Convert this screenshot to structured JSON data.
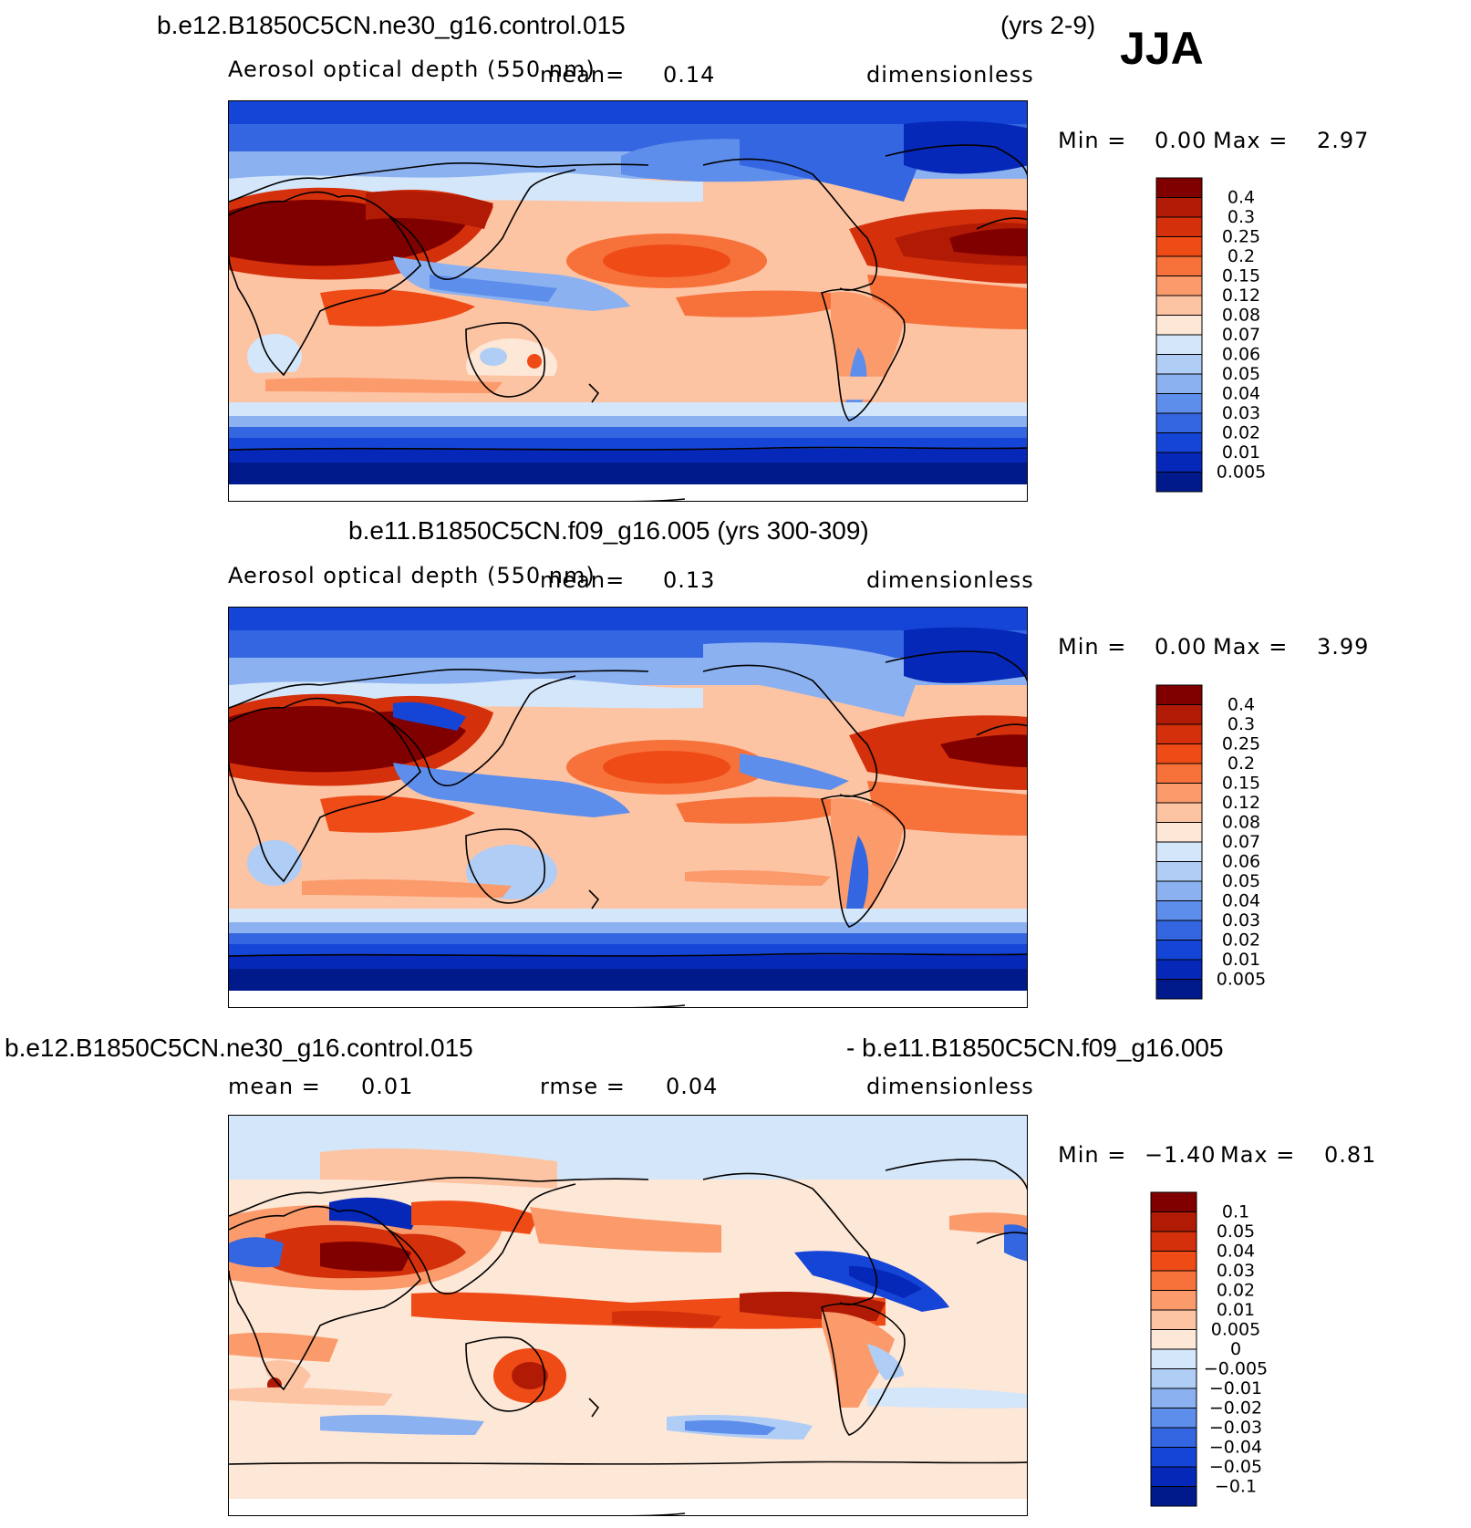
{
  "season": "JJA",
  "panels": [
    {
      "id": "case1",
      "case_name": "b.e12.B1850C5CN.ne30_g16.control.015",
      "years": "(yrs 2-9)",
      "variable": "Aerosol optical depth (550 nm)",
      "mean_label": "mean=",
      "mean_value": "0.14",
      "units": "dimensionless",
      "min_label": "Min =",
      "min_value": "0.00",
      "max_label": "Max =",
      "max_value": "2.97",
      "legend": {
        "levels": [
          "0.4",
          "0.3",
          "0.25",
          "0.2",
          "0.15",
          "0.12",
          "0.08",
          "0.07",
          "0.06",
          "0.05",
          "0.04",
          "0.03",
          "0.02",
          "0.01",
          "0.005"
        ],
        "colors": [
          "#800000",
          "#b11b05",
          "#d3300b",
          "#ef4b17",
          "#f7723a",
          "#fb9a6b",
          "#fdc4a4",
          "#fde7d6",
          "#d4e6f9",
          "#b0cdf5",
          "#8bb1f1",
          "#5e8eeb",
          "#3366e0",
          "#1545d6",
          "#0628b8",
          "#001a8c"
        ]
      }
    },
    {
      "id": "case2",
      "case_name": "b.e11.B1850C5CN.f09_g16.005 (yrs 300-309)",
      "variable": "Aerosol optical depth (550 nm)",
      "mean_label": "mean=",
      "mean_value": "0.13",
      "units": "dimensionless",
      "min_label": "Min =",
      "min_value": "0.00",
      "max_label": "Max =",
      "max_value": "3.99",
      "legend": {
        "levels": [
          "0.4",
          "0.3",
          "0.25",
          "0.2",
          "0.15",
          "0.12",
          "0.08",
          "0.07",
          "0.06",
          "0.05",
          "0.04",
          "0.03",
          "0.02",
          "0.01",
          "0.005"
        ],
        "colors": [
          "#800000",
          "#b11b05",
          "#d3300b",
          "#ef4b17",
          "#f7723a",
          "#fb9a6b",
          "#fdc4a4",
          "#fde7d6",
          "#d4e6f9",
          "#b0cdf5",
          "#8bb1f1",
          "#5e8eeb",
          "#3366e0",
          "#1545d6",
          "#0628b8",
          "#001a8c"
        ]
      }
    },
    {
      "id": "diff",
      "case_left": "b.e12.B1850C5CN.ne30_g16.control.015",
      "case_right": "- b.e11.B1850C5CN.f09_g16.005",
      "mean_label": "mean =",
      "mean_value": "0.01",
      "rmse_label": "rmse =",
      "rmse_value": "0.04",
      "units": "dimensionless",
      "min_label": "Min =",
      "min_value": "−1.40",
      "max_label": "Max =",
      "max_value": "0.81",
      "legend": {
        "levels": [
          "0.1",
          "0.05",
          "0.04",
          "0.03",
          "0.02",
          "0.01",
          "0.005",
          "0",
          "−0.005",
          "−0.01",
          "−0.02",
          "−0.03",
          "−0.04",
          "−0.05",
          "−0.1"
        ],
        "colors": [
          "#800000",
          "#b11b05",
          "#d3300b",
          "#ef4b17",
          "#f7723a",
          "#fb9a6b",
          "#fdc4a4",
          "#fde7d6",
          "#d4e6f9",
          "#b0cdf5",
          "#8bb1f1",
          "#5e8eeb",
          "#3366e0",
          "#1545d6",
          "#0628b8",
          "#001a8c"
        ]
      }
    }
  ]
}
